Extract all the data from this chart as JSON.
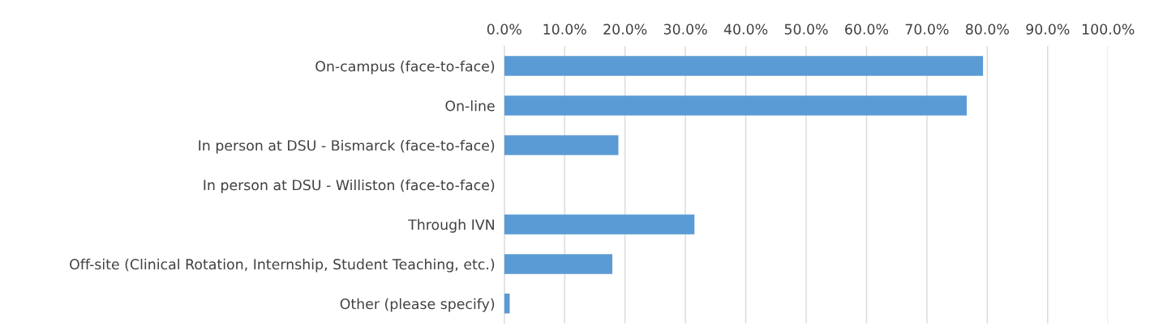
{
  "chart_data": {
    "type": "bar",
    "orientation": "horizontal",
    "categories": [
      "On-campus (face-to-face)",
      "On-line",
      "In person at DSU - Bismarck (face-to-face)",
      "In person at DSU - Williston (face-to-face)",
      "Through IVN",
      "Off-site (Clinical Rotation, Internship, Student Teaching, etc.)",
      "Other (please specify)"
    ],
    "values": [
      79.3,
      76.6,
      18.9,
      0,
      31.5,
      17.9,
      0.9
    ],
    "color": "#5b9bd5",
    "xlim": [
      0,
      100
    ],
    "xticks": [
      {
        "value": 0,
        "label": "0.0%"
      },
      {
        "value": 10,
        "label": "10.0%"
      },
      {
        "value": 20,
        "label": "20.0%"
      },
      {
        "value": 30,
        "label": "30.0%"
      },
      {
        "value": 40,
        "label": "40.0%"
      },
      {
        "value": 50,
        "label": "50.0%"
      },
      {
        "value": 60,
        "label": "60.0%"
      },
      {
        "value": 70,
        "label": "70.0%"
      },
      {
        "value": 80,
        "label": "80.0%"
      },
      {
        "value": 90,
        "label": "90.0%"
      },
      {
        "value": 100,
        "label": "100.0%"
      }
    ],
    "grid": "x"
  }
}
